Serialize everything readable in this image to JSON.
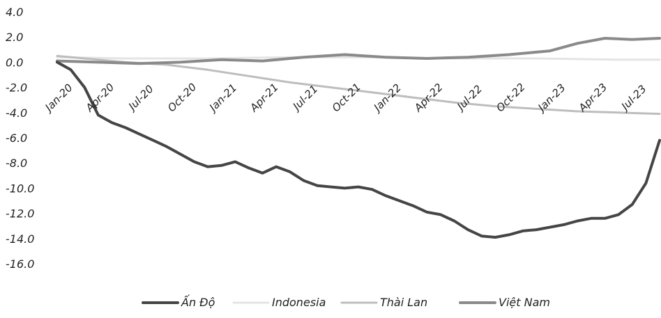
{
  "chart_data": {
    "type": "line",
    "title": "",
    "xlabel": "",
    "ylabel": "",
    "ylim": [
      -16,
      4
    ],
    "yticks": [
      "4.0",
      "2.0",
      "0.0",
      "-2.0",
      "-4.0",
      "-6.0",
      "-8.0",
      "-10.0",
      "-12.0",
      "-14.0",
      "-16.0"
    ],
    "xlim": [
      "2020-01",
      "2023-09"
    ],
    "xticks": [
      "Jan-20",
      "Apr-20",
      "Jul-20",
      "Oct-20",
      "Jan-21",
      "Apr-21",
      "Jul-21",
      "Oct-21",
      "Jan-22",
      "Apr-22",
      "Jul-22",
      "Oct-22",
      "Jan-23",
      "Apr-23",
      "Jul-23"
    ],
    "grid": false,
    "legend_position": "bottom",
    "series": [
      {
        "name": "Ấn Độ",
        "color": "#454545",
        "x": [
          "2020-01",
          "2020-02",
          "2020-03",
          "2020-04",
          "2020-05",
          "2020-06",
          "2020-07",
          "2020-08",
          "2020-09",
          "2020-10",
          "2020-11",
          "2020-12",
          "2021-01",
          "2021-02",
          "2021-03",
          "2021-04",
          "2021-05",
          "2021-06",
          "2021-07",
          "2021-08",
          "2021-09",
          "2021-10",
          "2021-11",
          "2021-12",
          "2022-01",
          "2022-02",
          "2022-03",
          "2022-04",
          "2022-05",
          "2022-06",
          "2022-07",
          "2022-08",
          "2022-09",
          "2022-10",
          "2022-11",
          "2022-12",
          "2023-01",
          "2023-02",
          "2023-03",
          "2023-04",
          "2023-05",
          "2023-06",
          "2023-07",
          "2023-08",
          "2023-09"
        ],
        "values": [
          0.0,
          -0.6,
          -2.0,
          -4.2,
          -4.8,
          -5.2,
          -5.7,
          -6.2,
          -6.7,
          -7.3,
          -7.9,
          -8.3,
          -8.2,
          -7.9,
          -8.4,
          -8.8,
          -8.3,
          -8.7,
          -9.4,
          -9.8,
          -9.9,
          -10.0,
          -9.9,
          -10.1,
          -10.6,
          -11.0,
          -11.4,
          -11.9,
          -12.1,
          -12.6,
          -13.3,
          -13.8,
          -13.9,
          -13.7,
          -13.4,
          -13.3,
          -13.1,
          -12.9,
          -12.6,
          -12.4,
          -12.4,
          -12.1,
          -11.3,
          -9.6,
          -6.2
        ]
      },
      {
        "name": "Indonesia",
        "color": "#e4e4e4",
        "x": [
          "2020-01",
          "2020-06",
          "2020-12",
          "2021-06",
          "2021-12",
          "2022-06",
          "2022-12",
          "2023-06",
          "2023-09"
        ],
        "values": [
          0.4,
          0.3,
          0.3,
          0.4,
          0.4,
          0.3,
          0.3,
          0.2,
          0.2
        ]
      },
      {
        "name": "Thài Lan",
        "color": "#bdbdbd",
        "x": [
          "2020-01",
          "2020-03",
          "2020-06",
          "2020-09",
          "2020-12",
          "2021-03",
          "2021-06",
          "2021-09",
          "2021-12",
          "2022-03",
          "2022-06",
          "2022-09",
          "2022-12",
          "2023-03",
          "2023-06",
          "2023-09"
        ],
        "values": [
          0.5,
          0.3,
          0.0,
          -0.2,
          -0.6,
          -1.1,
          -1.6,
          -2.0,
          -2.4,
          -2.8,
          -3.2,
          -3.5,
          -3.7,
          -3.9,
          -4.0,
          -4.1
        ]
      },
      {
        "name": "Việt Nam",
        "color": "#8a8a8a",
        "x": [
          "2020-01",
          "2020-04",
          "2020-07",
          "2020-10",
          "2021-01",
          "2021-04",
          "2021-07",
          "2021-10",
          "2022-01",
          "2022-04",
          "2022-07",
          "2022-10",
          "2023-01",
          "2023-03",
          "2023-05",
          "2023-07",
          "2023-09"
        ],
        "values": [
          0.1,
          0.0,
          -0.1,
          0.0,
          0.2,
          0.1,
          0.4,
          0.6,
          0.4,
          0.3,
          0.4,
          0.6,
          0.9,
          1.5,
          1.9,
          1.8,
          1.9
        ]
      }
    ]
  }
}
